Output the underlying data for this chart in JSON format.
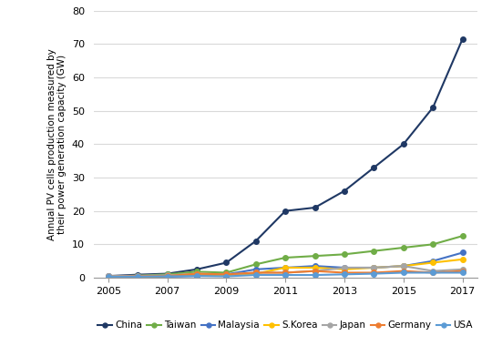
{
  "years": [
    2005,
    2006,
    2007,
    2008,
    2009,
    2010,
    2011,
    2012,
    2013,
    2014,
    2015,
    2016,
    2017
  ],
  "series": {
    "China": [
      0.5,
      0.9,
      1.2,
      2.5,
      4.5,
      11.0,
      20.0,
      21.0,
      26.0,
      33.0,
      40.0,
      51.0,
      71.5
    ],
    "Taiwan": [
      0.4,
      0.6,
      1.0,
      1.8,
      1.5,
      4.0,
      6.0,
      6.5,
      7.0,
      8.0,
      9.0,
      10.0,
      12.5
    ],
    "Malaysia": [
      0.1,
      0.2,
      0.3,
      0.5,
      1.0,
      2.5,
      3.0,
      3.5,
      3.0,
      3.0,
      3.5,
      5.0,
      7.5
    ],
    "S.Korea": [
      0.2,
      0.3,
      0.5,
      1.0,
      0.8,
      1.2,
      3.0,
      3.0,
      2.5,
      3.0,
      3.5,
      4.5,
      5.5
    ],
    "Japan": [
      0.5,
      0.6,
      0.7,
      1.2,
      1.0,
      1.5,
      1.5,
      2.0,
      3.0,
      3.0,
      3.5,
      2.0,
      2.5
    ],
    "Germany": [
      0.3,
      0.4,
      0.5,
      1.2,
      1.0,
      1.5,
      1.5,
      2.0,
      1.5,
      1.5,
      2.0,
      1.5,
      2.0
    ],
    "USA": [
      0.3,
      0.3,
      0.4,
      0.5,
      0.4,
      0.8,
      0.8,
      0.8,
      1.0,
      1.2,
      1.5,
      1.5,
      1.5
    ]
  },
  "colors": {
    "China": "#1f3864",
    "Taiwan": "#70ad47",
    "Malaysia": "#4472c4",
    "S.Korea": "#ffc000",
    "Japan": "#a5a5a5",
    "Germany": "#ed7d31",
    "USA": "#5b9bd5"
  },
  "ylabel": "Annual PV cells production measured by\ntheir power generation capacity (GW)",
  "ylim": [
    0,
    80
  ],
  "xlim_min": 2004.5,
  "xlim_max": 2017.5,
  "yticks": [
    0,
    10,
    20,
    30,
    40,
    50,
    60,
    70,
    80
  ],
  "xticks": [
    2005,
    2007,
    2009,
    2011,
    2013,
    2015,
    2017
  ],
  "background_color": "#ffffff",
  "grid_color": "#d9d9d9",
  "marker_size": 4,
  "line_width": 1.5,
  "ylabel_fontsize": 7.5,
  "tick_fontsize": 8,
  "legend_fontsize": 7.5
}
